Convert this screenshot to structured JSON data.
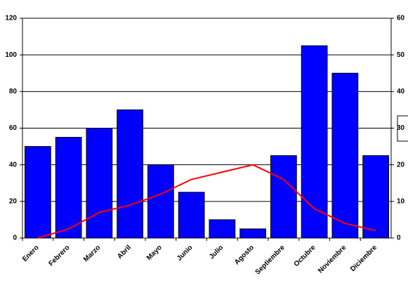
{
  "chart_data": {
    "type": "bar",
    "categories": [
      "Enero",
      "Febrero",
      "Marzo",
      "Abril",
      "Mayo",
      "Junio",
      "Julio",
      "Agosto",
      "Septiembre",
      "Octubre",
      "Noviembre",
      "Diciembre"
    ],
    "series": [
      {
        "type": "bar",
        "color": "#0000ff",
        "values": [
          50,
          55,
          60,
          70,
          40,
          25,
          10,
          5,
          45,
          105,
          90,
          45
        ]
      },
      {
        "type": "line",
        "color": "#ff0000",
        "axis": "y2",
        "values": [
          0,
          2.5,
          7,
          9,
          12,
          16,
          18,
          20,
          16,
          8,
          4,
          2
        ]
      }
    ],
    "ylim": [
      0,
      120
    ],
    "yticks": [
      0,
      20,
      40,
      60,
      80,
      100,
      120
    ],
    "y2lim": [
      0,
      60
    ],
    "y2ticks": [
      0,
      10,
      20,
      30,
      40,
      50,
      60
    ],
    "grid": true
  }
}
